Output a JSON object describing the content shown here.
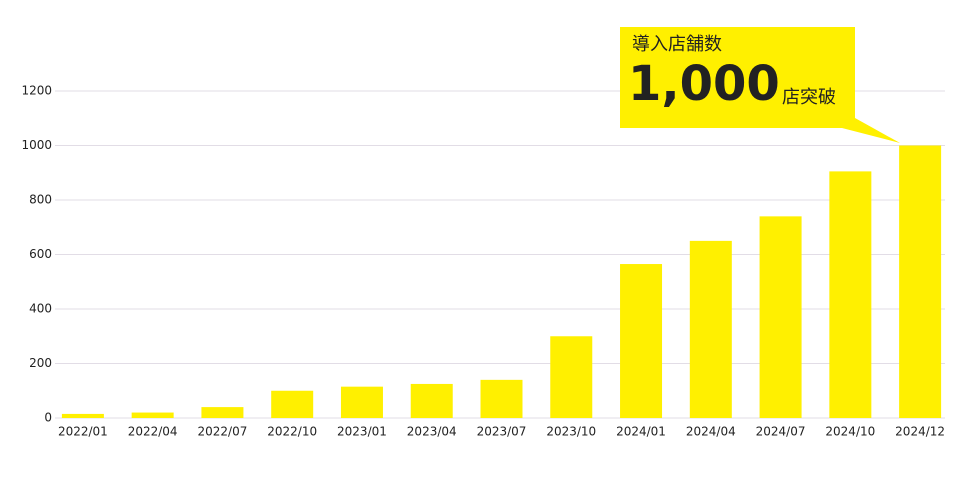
{
  "chart_data": {
    "type": "bar",
    "categories": [
      "2022/01",
      "2022/04",
      "2022/07",
      "2022/10",
      "2023/01",
      "2023/04",
      "2023/07",
      "2023/10",
      "2024/01",
      "2024/04",
      "2024/07",
      "2024/10",
      "2024/12"
    ],
    "values": [
      15,
      20,
      40,
      100,
      115,
      125,
      140,
      300,
      565,
      650,
      740,
      905,
      1000
    ],
    "color": "#fff000",
    "ylim": [
      0,
      1200
    ],
    "yticks": [
      0,
      200,
      400,
      600,
      800,
      1000,
      1200
    ],
    "grid": true,
    "annotation": {
      "label": "導入店舗数",
      "number": "1,000",
      "suffix": "店突破"
    }
  }
}
